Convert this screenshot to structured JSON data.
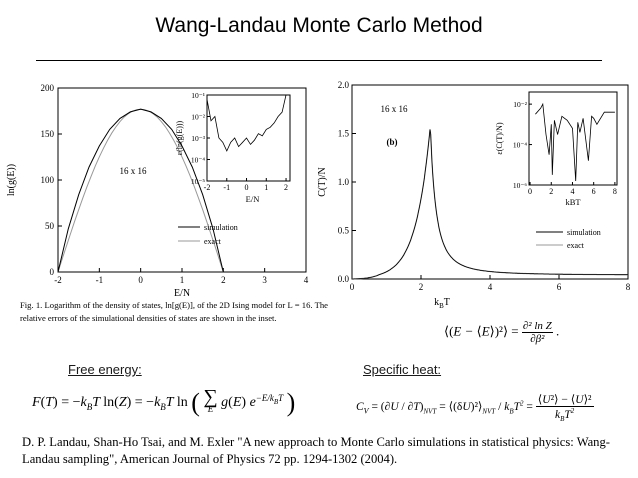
{
  "slide": {
    "title": "Wang-Landau Monte Carlo Method",
    "free_energy_label": "Free energy:",
    "specific_heat_label": "Specific heat:",
    "caption": "Fig. 1. Logarithm of the density of states, ln[g(E)], of the 2D Ising model for L = 16. The relative errors of the simulational densities of states are shown in the inset.",
    "reference": "D. P. Landau, Shan-Ho Tsai, and M. Exler \"A new approach to Monte Carlo simulations in statistical physics: Wang-Landau sampling\", American Journal of Physics 72 pp. 1294-1302 (2004).",
    "eq_fluct": "⟨(E − ⟨E⟩)²⟩ = ∂² ln Z / ∂β² .",
    "eq_free": "F(T) = −kBT ln(Z) = −kBT ln( Σ g(E) e^(−E/kBT) )",
    "eq_cv": "CV = (∂U/∂T)NVT = ⟨(δU)²⟩NVT / kBT² = (⟨U²⟩ − ⟨U⟩²) / kBT²"
  },
  "chart_data": [
    {
      "type": "line",
      "panel_text": "16 x 16",
      "xlabel": "E/N",
      "ylabel": "ln(g(E))",
      "xlim": [
        -2,
        4
      ],
      "ylim": [
        0,
        200
      ],
      "xticks": [
        "-2",
        "-1",
        "0",
        "1",
        "2",
        "3",
        "4"
      ],
      "yticks": [
        "0",
        "50",
        "100",
        "150",
        "200"
      ],
      "series": [
        {
          "name": "simulation",
          "x": [
            -2,
            -1.75,
            -1.5,
            -1.25,
            -1,
            -0.75,
            -0.5,
            -0.25,
            0,
            0.25,
            0.5,
            0.75,
            1,
            1.25,
            1.5,
            1.75,
            2
          ],
          "y": [
            0,
            47,
            84,
            114,
            137,
            155,
            167,
            174,
            177,
            174,
            167,
            155,
            137,
            114,
            84,
            47,
            0
          ]
        },
        {
          "name": "exact",
          "x": [
            -2,
            0,
            2
          ],
          "y": [
            0,
            177,
            0
          ]
        }
      ],
      "legend": "center-right",
      "inset": {
        "xlabel": "E/N",
        "ylabel": "ε(ln(g(E)))",
        "xticks": [
          "-2",
          "-1",
          "0",
          "1",
          "2"
        ],
        "yticks": [
          "10⁻¹",
          "10⁻²",
          "10⁻³",
          "10⁻⁴",
          "10⁻⁵"
        ],
        "x": [
          -2,
          -1.8,
          -1.6,
          -1.4,
          -1.2,
          -1,
          -0.8,
          -0.6,
          -0.4,
          -0.2,
          0,
          0.2,
          0.4,
          0.6,
          0.8,
          1,
          1.2,
          1.4,
          1.6,
          1.8,
          2
        ],
        "log10_y": [
          -1.2,
          -2.2,
          -2.0,
          -3.0,
          -3.2,
          -3.6,
          -3.2,
          -3.0,
          -3.4,
          -3.2,
          -3.0,
          -3.3,
          -3.1,
          -2.8,
          -2.9,
          -2.6,
          -2.5,
          -2.3,
          -2.0,
          -1.8,
          -1.0
        ]
      }
    },
    {
      "type": "line",
      "panel_text": "16 x 16",
      "panel_label": "(b)",
      "xlabel": "kBT",
      "ylabel": "C(T)/N",
      "xlim": [
        0,
        8
      ],
      "ylim": [
        0,
        2
      ],
      "xticks": [
        "0",
        "2",
        "4",
        "6",
        "8"
      ],
      "yticks": [
        "0.0",
        "0.5",
        "1.0",
        "1.5",
        "2.0"
      ],
      "series": [
        {
          "name": "simulation",
          "x": [
            0,
            0.5,
            1,
            1.5,
            1.8,
            2.0,
            2.1,
            2.2,
            2.27,
            2.35,
            2.45,
            2.6,
            3.0,
            3.5,
            4,
            5,
            6,
            7,
            8
          ],
          "y": [
            0,
            0.0,
            0.02,
            0.2,
            0.45,
            0.75,
            1.0,
            1.3,
            1.58,
            1.35,
            1.0,
            0.75,
            0.48,
            0.32,
            0.24,
            0.14,
            0.09,
            0.06,
            0.045
          ]
        },
        {
          "name": "exact",
          "x": [
            0,
            1,
            2,
            2.27,
            3,
            4,
            8
          ],
          "y": [
            0,
            0.02,
            0.75,
            1.58,
            0.48,
            0.24,
            0.045
          ]
        }
      ],
      "legend": "lower-right",
      "inset": {
        "xlabel": "kBT",
        "ylabel": "ε(C(T)/N)",
        "xticks": [
          "0",
          "2",
          "4",
          "6",
          "8"
        ],
        "yticks": [
          "10⁻²",
          "10⁻⁴",
          "10⁻⁶"
        ],
        "x": [
          0.5,
          1.0,
          1.2,
          1.5,
          1.8,
          2.0,
          2.1,
          2.3,
          2.6,
          3.0,
          3.5,
          4.0,
          4.3,
          4.5,
          4.7,
          5.0,
          5.5,
          5.8,
          6.0,
          6.3,
          7.0,
          8.0
        ],
        "log10_y": [
          -2.5,
          -2.2,
          -2.0,
          -3.5,
          -4.5,
          -3.0,
          -5.5,
          -2.8,
          -3.5,
          -2.6,
          -2.8,
          -3.2,
          -5.8,
          -2.9,
          -3.4,
          -2.7,
          -4.8,
          -2.6,
          -2.7,
          -3.0,
          -2.4,
          -2.4
        ]
      }
    }
  ],
  "legend_labels": {
    "simulation": "simulation",
    "exact": "exact"
  }
}
